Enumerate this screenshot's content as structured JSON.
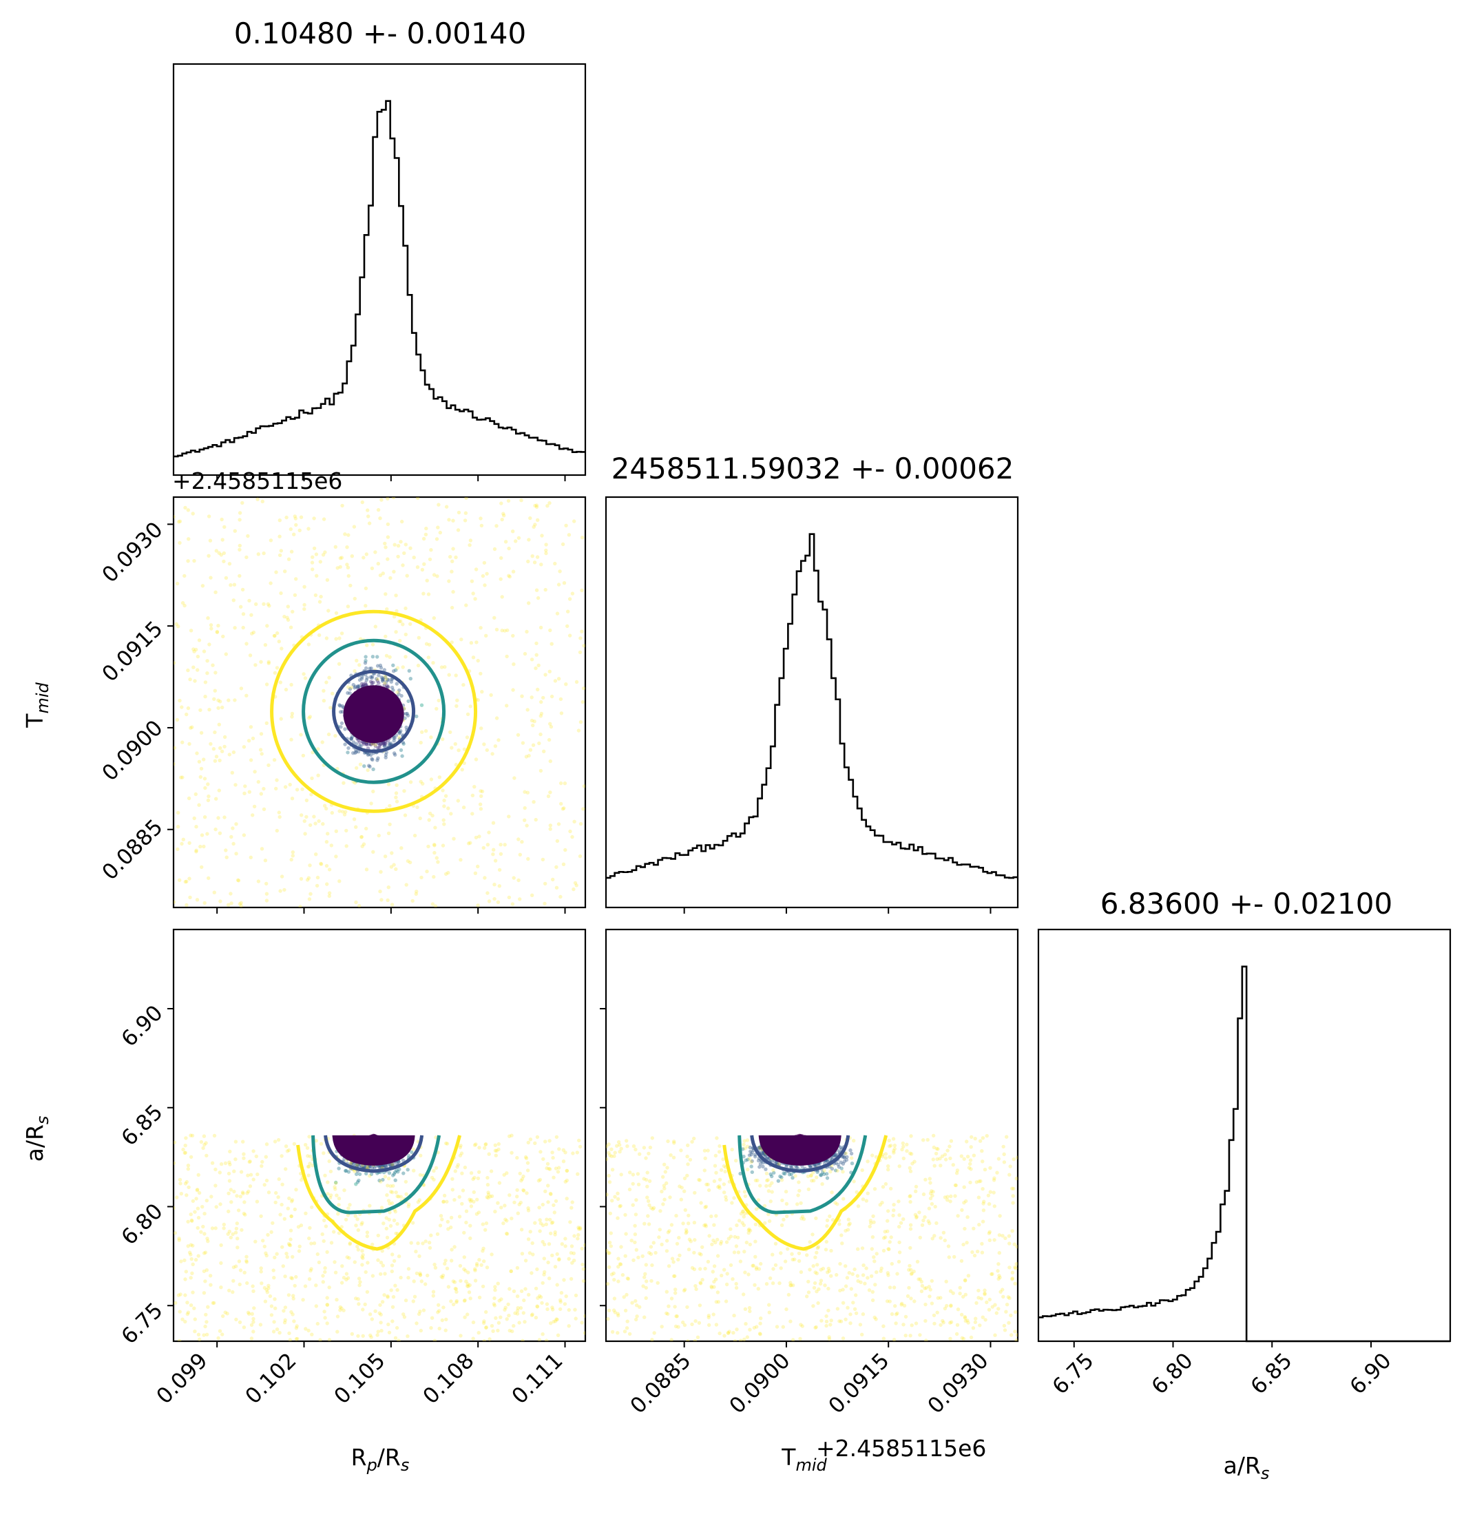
{
  "chart_data": [
    {
      "type": "histogram",
      "panel": "rp-hist",
      "title": "0.10480 +- 0.00140",
      "param": "Rp/Rs",
      "median": 0.1048,
      "sigma": 0.0014,
      "xlim": [
        0.0975,
        0.1117
      ],
      "x_ticks": [
        0.099,
        0.102,
        0.105,
        0.108,
        0.111
      ]
    },
    {
      "type": "histogram",
      "panel": "tmid-hist",
      "title": "2458511.59032 +- 0.00062",
      "param": "T_mid",
      "median": 0.09032,
      "sigma": 0.00062,
      "offset_value": "+2.4585115e6",
      "xlim": [
        0.08735,
        0.0934
      ],
      "x_ticks": [
        0.0885,
        0.09,
        0.0915,
        0.093
      ]
    },
    {
      "type": "histogram",
      "panel": "ars-hist",
      "title": "6.83600 +- 0.02100",
      "param": "a/Rs",
      "median": 6.836,
      "sigma": 0.021,
      "upper_bound": 6.836,
      "xlim": [
        6.732,
        6.94
      ],
      "x_ticks": [
        6.75,
        6.8,
        6.85,
        6.9
      ]
    },
    {
      "type": "scatter",
      "panel": "tmid-vs-rp",
      "x_param": "Rp/Rs",
      "y_param": "T_mid",
      "xlim": [
        0.0975,
        0.1117
      ],
      "ylim": [
        0.08735,
        0.0934
      ],
      "y_offset": "+2.4585115e6",
      "y_ticks": [
        0.0885,
        0.09,
        0.0915,
        0.093
      ],
      "center": [
        0.1044,
        0.0902
      ],
      "contours": [
        {
          "level": "1-sigma",
          "color": "#3b528b"
        },
        {
          "level": "2-sigma",
          "color": "#21918c"
        },
        {
          "level": "3-sigma",
          "color": "#fde725"
        }
      ]
    },
    {
      "type": "scatter",
      "panel": "ars-vs-rp",
      "x_param": "Rp/Rs",
      "y_param": "a/Rs",
      "xlim": [
        0.0975,
        0.1117
      ],
      "ylim": [
        6.732,
        6.94
      ],
      "y_ticks": [
        6.75,
        6.8,
        6.85,
        6.9
      ],
      "center": [
        0.1044,
        6.829
      ],
      "colors": [
        "#440154",
        "#3b528b",
        "#21918c",
        "#5ec962",
        "#fde725"
      ]
    },
    {
      "type": "scatter",
      "panel": "ars-vs-tmid",
      "x_param": "T_mid",
      "y_param": "a/Rs",
      "xlim": [
        0.08735,
        0.0934
      ],
      "ylim": [
        6.732,
        6.94
      ],
      "center": [
        0.0902,
        6.829
      ],
      "colors": [
        "#440154",
        "#3b528b",
        "#21918c",
        "#5ec962",
        "#fde725"
      ]
    }
  ],
  "labels": {
    "rp_axis_base": "R",
    "rp_axis_sub": "p",
    "rp_axis_mid": "/R",
    "rp_axis_sub2": "s",
    "tmid_axis_base": "T",
    "tmid_axis_sub": "mid",
    "ars_axis_base": "a/R",
    "ars_axis_sub": "s",
    "tmid_offset": "+2.4585115e6"
  },
  "tick_labels": {
    "rp": [
      "0.099",
      "0.102",
      "0.105",
      "0.108",
      "0.111"
    ],
    "tmid": [
      "0.0885",
      "0.0900",
      "0.0915",
      "0.0930"
    ],
    "ars": [
      "6.75",
      "6.80",
      "6.85",
      "6.90"
    ]
  }
}
